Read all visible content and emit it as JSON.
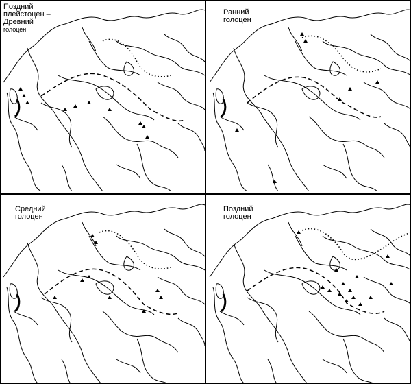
{
  "panels": [
    {
      "title_lines": [
        "Поздний",
        "плейстоцен –",
        "Древний",
        "голоцен"
      ]
    },
    {
      "title_lines": [
        "Ранний",
        "голоцен"
      ]
    },
    {
      "title_lines": [
        "Средний",
        "голоцен"
      ]
    },
    {
      "title_lines": [
        "Поздний",
        "голоцен"
      ]
    }
  ],
  "legend_symbols": {
    "site": "triangle-icon",
    "boundary": "dashed-line",
    "northern-limit": "dotted-line"
  },
  "colors": {
    "ink": "#000000",
    "background": "#ffffff"
  }
}
